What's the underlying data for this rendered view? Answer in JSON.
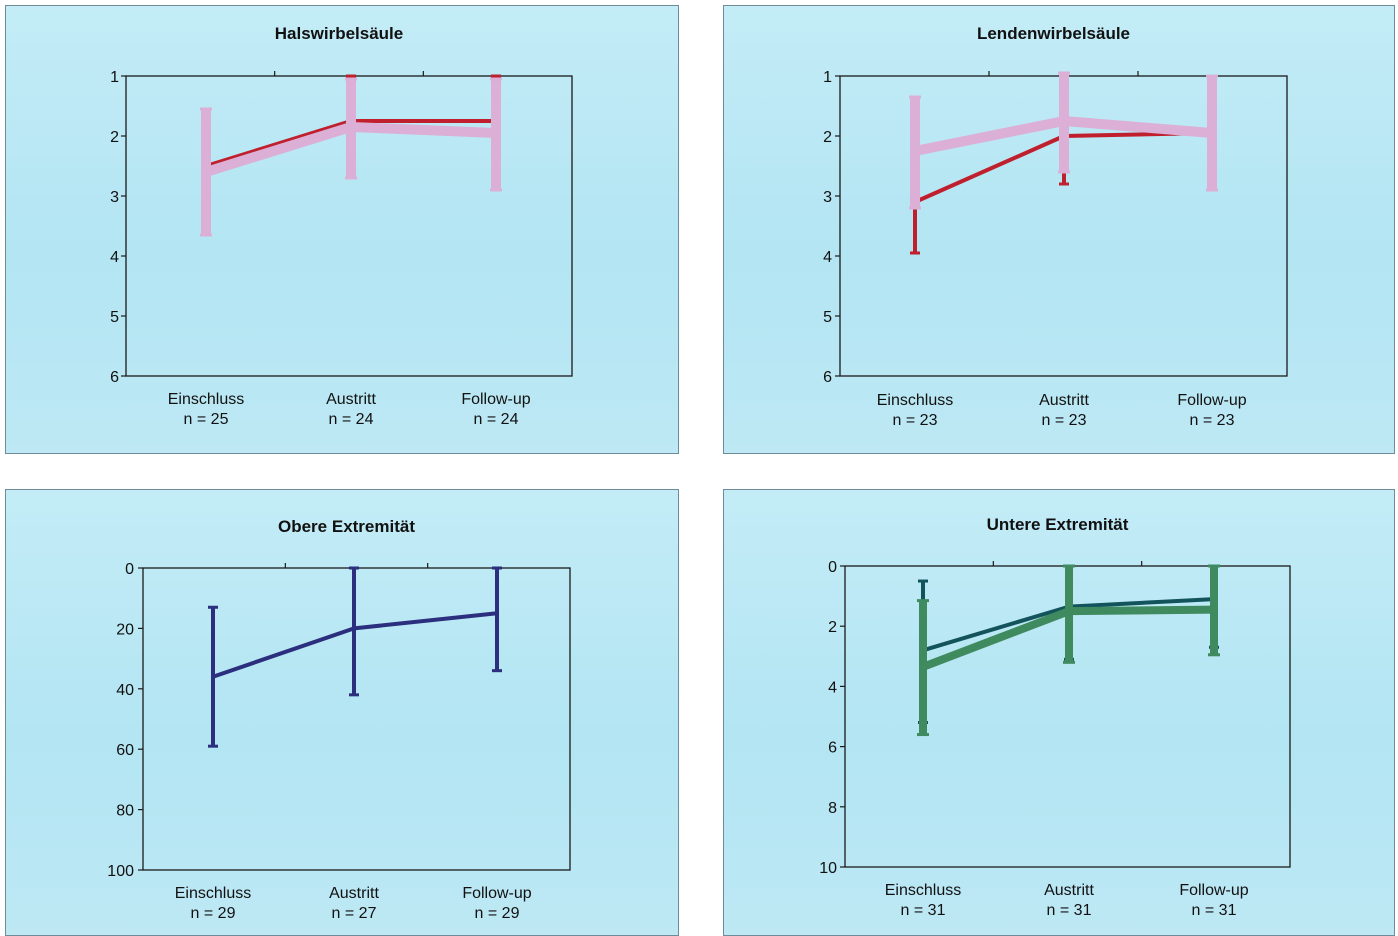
{
  "chart_data": [
    {
      "type": "line",
      "title": "Halswirbelsäule",
      "categories": [
        "Einschluss",
        "Austritt",
        "Follow-up"
      ],
      "sublabels": [
        "n = 25",
        "n = 24",
        "n = 24"
      ],
      "ylim": [
        1,
        6
      ],
      "yticks": [
        1,
        2,
        3,
        4,
        5,
        6
      ],
      "y_inverted": true,
      "series": [
        {
          "color": "#c0202e",
          "width": 4,
          "values": [
            2.5,
            1.75,
            1.75
          ],
          "err_low": [
            1.7,
            1.0,
            1.0
          ],
          "err_high": [
            3.3,
            2.5,
            2.5
          ]
        },
        {
          "color": "#dcb0d6",
          "width": 10,
          "values": [
            2.6,
            1.85,
            1.95
          ],
          "err_low": [
            1.55,
            1.05,
            1.05
          ],
          "err_high": [
            3.65,
            2.7,
            2.9
          ]
        }
      ]
    },
    {
      "type": "line",
      "title": "Lendenwirbelsäule",
      "categories": [
        "Einschluss",
        "Austritt",
        "Follow-up"
      ],
      "sublabels": [
        "n = 23",
        "n = 23",
        "n = 23"
      ],
      "ylim": [
        1,
        6
      ],
      "yticks": [
        1,
        2,
        3,
        4,
        5,
        6
      ],
      "y_inverted": true,
      "series": [
        {
          "color": "#c0202e",
          "width": 4,
          "values": [
            3.1,
            2.0,
            1.95
          ],
          "err_low": [
            2.3,
            1.25,
            1.1
          ],
          "err_high": [
            3.95,
            2.8,
            2.8
          ]
        },
        {
          "color": "#dcb0d6",
          "width": 10,
          "values": [
            2.25,
            1.75,
            1.95
          ],
          "err_low": [
            1.35,
            0.95,
            1.0
          ],
          "err_high": [
            3.2,
            2.6,
            2.9
          ]
        }
      ]
    },
    {
      "type": "line",
      "title": "Obere Extremität",
      "categories": [
        "Einschluss",
        "Austritt",
        "Follow-up"
      ],
      "sublabels": [
        "n = 29",
        "n = 27",
        "n = 29"
      ],
      "ylim": [
        0,
        100
      ],
      "yticks": [
        0,
        20,
        40,
        60,
        80,
        100
      ],
      "y_inverted": true,
      "series": [
        {
          "color": "#2b2f7e",
          "width": 4,
          "values": [
            36,
            20,
            15
          ],
          "err_low": [
            13,
            0,
            0
          ],
          "err_high": [
            59,
            42,
            34
          ]
        }
      ]
    },
    {
      "type": "line",
      "title": "Untere Extremität",
      "categories": [
        "Einschluss",
        "Austritt",
        "Follow-up"
      ],
      "sublabels": [
        "n = 31",
        "n = 31",
        "n = 31"
      ],
      "ylim": [
        0,
        10
      ],
      "yticks": [
        0,
        2,
        4,
        6,
        8,
        10
      ],
      "y_inverted": true,
      "series": [
        {
          "color": "#13545c",
          "width": 4,
          "values": [
            2.8,
            1.35,
            1.1
          ],
          "err_low": [
            0.5,
            0,
            0
          ],
          "err_high": [
            5.2,
            3.1,
            2.7
          ]
        },
        {
          "color": "#3f8a5e",
          "width": 8,
          "values": [
            3.35,
            1.5,
            1.45
          ],
          "err_low": [
            1.15,
            0,
            0
          ],
          "err_high": [
            5.6,
            3.2,
            2.95
          ]
        }
      ]
    }
  ]
}
